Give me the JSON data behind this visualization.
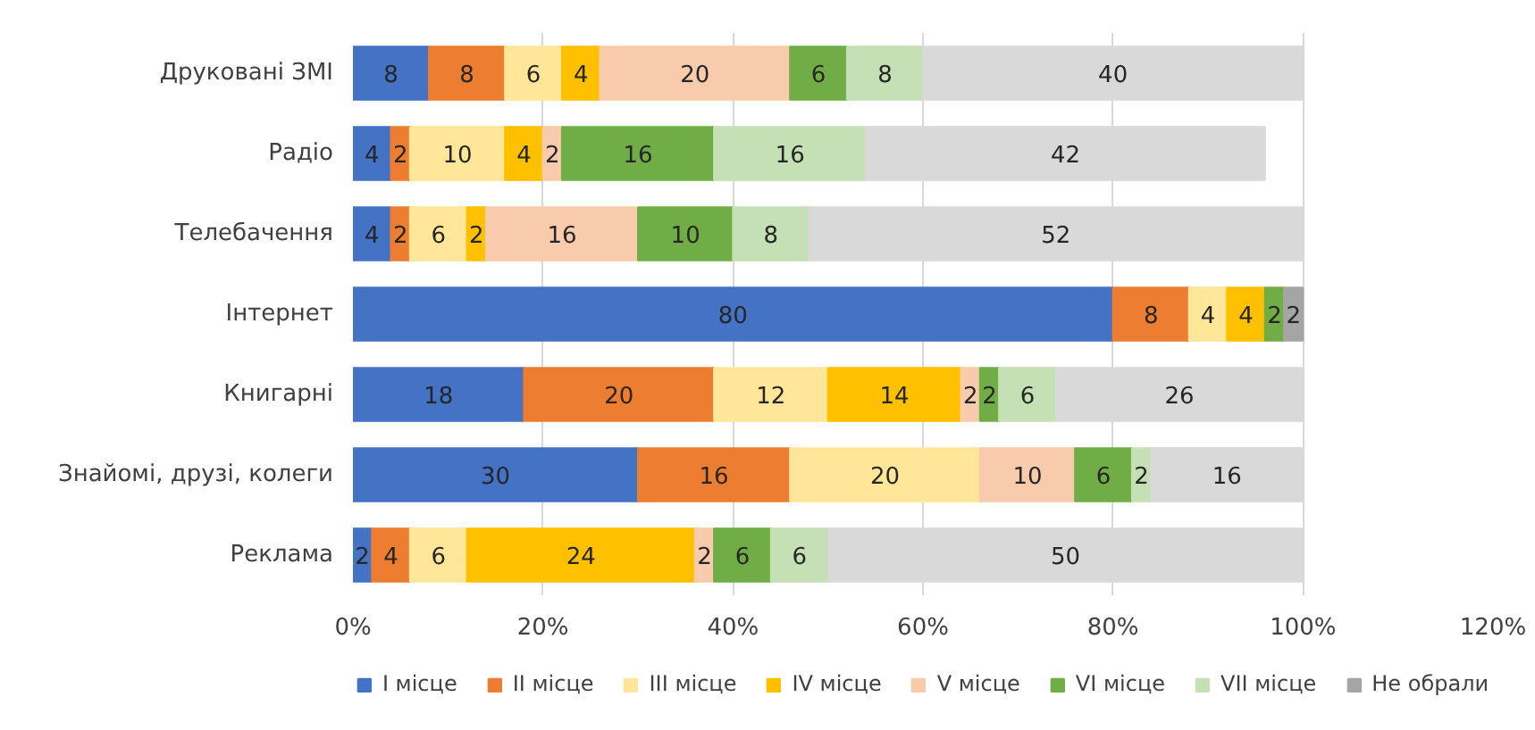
{
  "chart_data": {
    "type": "bar",
    "orientation": "horizontal",
    "stacked": true,
    "data_labels": true,
    "categories": [
      "Друковані ЗМІ",
      "Радіо",
      "Телебачення",
      "Інтернет",
      "Книгарні",
      "Знайомі, друзі, колеги",
      "Реклама"
    ],
    "series": [
      {
        "name": "I місце",
        "color": "#4472c4",
        "values": [
          8,
          4,
          4,
          80,
          18,
          30,
          2
        ]
      },
      {
        "name": "II місце",
        "color": "#ed7d31",
        "values": [
          8,
          2,
          2,
          8,
          20,
          16,
          4
        ]
      },
      {
        "name": "III місце",
        "color": "#ffe699",
        "values": [
          6,
          10,
          6,
          4,
          12,
          20,
          6
        ]
      },
      {
        "name": "IV місце",
        "color": "#ffc000",
        "values": [
          4,
          4,
          2,
          4,
          14,
          null,
          24
        ]
      },
      {
        "name": "V місце",
        "color": "#f8cbad",
        "values": [
          20,
          2,
          16,
          null,
          2,
          10,
          2
        ]
      },
      {
        "name": "VI місце",
        "color": "#70ad47",
        "values": [
          6,
          16,
          10,
          2,
          2,
          6,
          6
        ]
      },
      {
        "name": "VII місце",
        "color": "#c5e0b4",
        "values": [
          8,
          16,
          8,
          null,
          6,
          2,
          6
        ]
      },
      {
        "name": "Не обрали",
        "color": "#a5a5a5",
        "colors": [
          "#d9d9d9",
          "#d9d9d9",
          "#d9d9d9",
          "#a5a5a5",
          "#d9d9d9",
          "#d9d9d9",
          "#d9d9d9"
        ],
        "values": [
          40,
          42,
          52,
          2,
          26,
          16,
          50
        ]
      }
    ],
    "xlim": [
      0,
      120
    ],
    "xticks": [
      {
        "value": 0,
        "label": "0%"
      },
      {
        "value": 20,
        "label": "20%"
      },
      {
        "value": 40,
        "label": "40%"
      },
      {
        "value": 60,
        "label": "60%"
      },
      {
        "value": 80,
        "label": "80%"
      },
      {
        "value": 100,
        "label": "100%"
      },
      {
        "value": 120,
        "label": "120%"
      }
    ],
    "grid": "x",
    "legend": "bottom"
  }
}
